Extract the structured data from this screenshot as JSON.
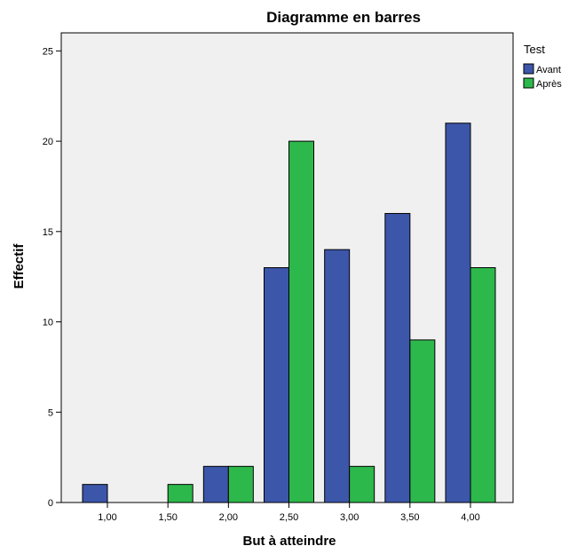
{
  "chart_data": {
    "type": "bar",
    "title": "Diagramme en barres",
    "xlabel": "But à atteindre",
    "ylabel": "Effectif",
    "categories": [
      "1,00",
      "1,50",
      "2,00",
      "2,50",
      "3,00",
      "3,50",
      "4,00"
    ],
    "series": [
      {
        "name": "Avant",
        "color": "#3c56aa",
        "values": [
          1,
          0,
          2,
          13,
          14,
          16,
          21
        ]
      },
      {
        "name": "Après",
        "color": "#2db84b",
        "values": [
          0,
          1,
          2,
          20,
          2,
          9,
          13
        ]
      }
    ],
    "ylim": [
      0,
      26
    ],
    "yticks": [
      0,
      5,
      10,
      15,
      20,
      25
    ],
    "grid": false,
    "plot_background": "#f0f0f0",
    "legend": {
      "title": "Test",
      "placement": "right"
    }
  }
}
